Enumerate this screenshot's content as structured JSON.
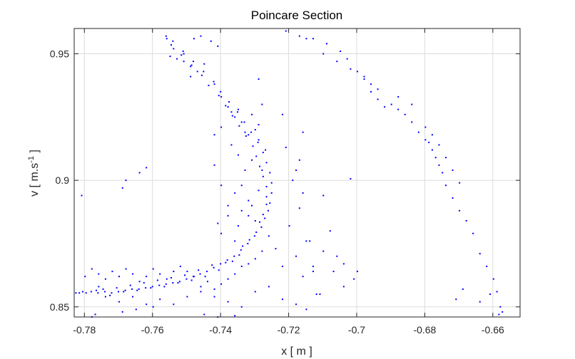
{
  "chart_data": {
    "type": "scatter",
    "title": "Poincare Section",
    "xlabel": "x  [ m ]",
    "ylabel": {
      "prefix": "v  [ m.s",
      "superscript": "-1",
      "suffix": " ]"
    },
    "xlim": [
      -0.783,
      -0.652
    ],
    "ylim": [
      0.846,
      0.96
    ],
    "xticks": [
      -0.78,
      -0.76,
      -0.74,
      -0.72,
      -0.7,
      -0.68,
      -0.66
    ],
    "xticklabels": [
      "-0.78",
      "-0.76",
      "-0.74",
      "-0.72",
      "-0.7",
      "-0.68",
      "-0.66"
    ],
    "yticks": [
      0.85,
      0.9,
      0.95
    ],
    "yticklabels": [
      "0.85",
      "0.9",
      "0.95"
    ],
    "grid": true,
    "marker_color": "#0000ff",
    "series": [
      {
        "points": [
          [
            -0.7825,
            0.8555
          ],
          [
            -0.7815,
            0.8555
          ],
          [
            -0.7805,
            0.856
          ],
          [
            -0.7795,
            0.8555
          ],
          [
            -0.778,
            0.856
          ],
          [
            -0.776,
            0.8555
          ],
          [
            -0.774,
            0.856
          ],
          [
            -0.772,
            0.8555
          ],
          [
            -0.77,
            0.856
          ],
          [
            -0.768,
            0.8565
          ],
          [
            -0.766,
            0.857
          ],
          [
            -0.764,
            0.857
          ],
          [
            -0.762,
            0.8575
          ],
          [
            -0.76,
            0.858
          ],
          [
            -0.758,
            0.8585
          ],
          [
            -0.756,
            0.859
          ],
          [
            -0.754,
            0.8595
          ],
          [
            -0.752,
            0.86
          ],
          [
            -0.75,
            0.861
          ],
          [
            -0.748,
            0.862
          ],
          [
            -0.746,
            0.863
          ],
          [
            -0.744,
            0.864
          ],
          [
            -0.742,
            0.8655
          ],
          [
            -0.74,
            0.867
          ],
          [
            -0.738,
            0.8685
          ],
          [
            -0.736,
            0.87
          ],
          [
            -0.734,
            0.8725
          ],
          [
            -0.732,
            0.875
          ],
          [
            -0.73,
            0.878
          ],
          [
            -0.728,
            0.8815
          ],
          [
            -0.727,
            0.885
          ],
          [
            -0.726,
            0.888
          ],
          [
            -0.7255,
            0.891
          ],
          [
            -0.725,
            0.895
          ],
          [
            -0.725,
            0.899
          ],
          [
            -0.7255,
            0.903
          ],
          [
            -0.7265,
            0.907
          ],
          [
            -0.7275,
            0.911
          ],
          [
            -0.729,
            0.915
          ],
          [
            -0.731,
            0.919
          ],
          [
            -0.733,
            0.923
          ],
          [
            -0.735,
            0.927
          ],
          [
            -0.7375,
            0.931
          ],
          [
            -0.74,
            0.935
          ],
          [
            -0.742,
            0.939
          ],
          [
            -0.745,
            0.943
          ],
          [
            -0.748,
            0.947
          ],
          [
            -0.751,
            0.951
          ],
          [
            -0.754,
            0.955
          ],
          [
            -0.756,
            0.957
          ],
          [
            -0.7765,
            0.8565
          ],
          [
            -0.7745,
            0.857
          ],
          [
            -0.7725,
            0.8545
          ],
          [
            -0.7705,
            0.8575
          ],
          [
            -0.7685,
            0.856
          ],
          [
            -0.7665,
            0.8585
          ],
          [
            -0.7645,
            0.8565
          ],
          [
            -0.7625,
            0.8595
          ],
          [
            -0.7605,
            0.8575
          ],
          [
            -0.7585,
            0.8605
          ],
          [
            -0.7565,
            0.858
          ],
          [
            -0.7545,
            0.8615
          ],
          [
            -0.7525,
            0.8595
          ],
          [
            -0.7505,
            0.8625
          ],
          [
            -0.7485,
            0.8605
          ],
          [
            -0.7465,
            0.8645
          ],
          [
            -0.7445,
            0.862
          ],
          [
            -0.7425,
            0.8665
          ],
          [
            -0.7405,
            0.8645
          ],
          [
            -0.7385,
            0.8675
          ],
          [
            -0.7365,
            0.868
          ],
          [
            -0.7345,
            0.8705
          ],
          [
            -0.7335,
            0.874
          ],
          [
            -0.7315,
            0.8765
          ],
          [
            -0.7295,
            0.8795
          ],
          [
            -0.7285,
            0.8835
          ],
          [
            -0.7275,
            0.8865
          ],
          [
            -0.7265,
            0.8905
          ],
          [
            -0.7265,
            0.8935
          ],
          [
            -0.7265,
            0.8975
          ],
          [
            -0.7275,
            0.9015
          ],
          [
            -0.7285,
            0.9055
          ],
          [
            -0.7295,
            0.9095
          ],
          [
            -0.7305,
            0.9135
          ],
          [
            -0.7325,
            0.9175
          ],
          [
            -0.7345,
            0.9215
          ],
          [
            -0.7365,
            0.9255
          ],
          [
            -0.7385,
            0.9295
          ],
          [
            -0.7405,
            0.9335
          ],
          [
            -0.7435,
            0.9375
          ],
          [
            -0.7455,
            0.9415
          ],
          [
            -0.7485,
            0.9455
          ],
          [
            -0.7515,
            0.9495
          ],
          [
            -0.7545,
            0.9535
          ],
          [
            -0.7338,
            0.888
          ],
          [
            -0.7318,
            0.886
          ],
          [
            -0.7308,
            0.89
          ],
          [
            -0.7298,
            0.884
          ],
          [
            -0.7288,
            0.896
          ],
          [
            -0.7318,
            0.892
          ],
          [
            -0.7338,
            0.898
          ],
          [
            -0.7348,
            0.882
          ],
          [
            -0.7358,
            0.895
          ],
          [
            -0.7328,
            0.904
          ],
          [
            -0.7308,
            0.908
          ],
          [
            -0.7348,
            0.91
          ],
          [
            -0.7368,
            0.914
          ],
          [
            -0.7318,
            0.918
          ],
          [
            -0.7288,
            0.916
          ],
          [
            -0.7378,
            0.886
          ],
          [
            -0.7398,
            0.879
          ],
          [
            -0.7358,
            0.876
          ],
          [
            -0.7408,
            0.883
          ],
          [
            -0.7378,
            0.89
          ],
          [
            -0.7398,
            0.898
          ],
          [
            -0.7418,
            0.906
          ],
          [
            -0.7338,
            0.923
          ],
          [
            -0.7368,
            0.927
          ],
          [
            -0.7398,
            0.921
          ],
          [
            -0.7418,
            0.918
          ],
          [
            -0.7308,
            0.926
          ],
          [
            -0.7288,
            0.922
          ],
          [
            -0.7268,
            0.912
          ],
          [
            -0.7278,
            0.904
          ],
          [
            -0.7258,
            0.878
          ],
          [
            -0.7278,
            0.872
          ],
          [
            -0.7298,
            0.869
          ],
          [
            -0.7318,
            0.867
          ],
          [
            -0.7338,
            0.866
          ],
          [
            -0.7358,
            0.863
          ],
          [
            -0.7378,
            0.861
          ],
          [
            -0.7398,
            0.859
          ],
          [
            -0.7418,
            0.857
          ],
          [
            -0.7438,
            0.86
          ],
          [
            -0.7458,
            0.858
          ],
          [
            -0.7478,
            0.862
          ],
          [
            -0.7498,
            0.864
          ],
          [
            -0.7518,
            0.866
          ],
          [
            -0.7538,
            0.864
          ],
          [
            -0.7558,
            0.861
          ],
          [
            -0.7578,
            0.863
          ],
          [
            -0.7598,
            0.865
          ],
          [
            -0.7618,
            0.862
          ],
          [
            -0.7638,
            0.86
          ],
          [
            -0.7658,
            0.863
          ],
          [
            -0.7678,
            0.865
          ],
          [
            -0.7698,
            0.862
          ],
          [
            -0.7718,
            0.864
          ],
          [
            -0.7738,
            0.861
          ],
          [
            -0.7758,
            0.863
          ],
          [
            -0.7778,
            0.865
          ],
          [
            -0.7798,
            0.862
          ],
          [
            -0.7758,
            0.858
          ],
          [
            -0.7738,
            0.854
          ],
          [
            -0.7698,
            0.852
          ],
          [
            -0.7658,
            0.854
          ],
          [
            -0.7618,
            0.851
          ],
          [
            -0.7578,
            0.853
          ],
          [
            -0.7538,
            0.851
          ],
          [
            -0.7498,
            0.854
          ],
          [
            -0.7458,
            0.856
          ],
          [
            -0.7418,
            0.854
          ],
          [
            -0.7378,
            0.852
          ],
          [
            -0.7338,
            0.85
          ],
          [
            -0.7298,
            0.856
          ],
          [
            -0.7258,
            0.858
          ],
          [
            -0.7218,
            0.853
          ],
          [
            -0.7178,
            0.851
          ],
          [
            -0.7148,
            0.849
          ],
          [
            -0.7118,
            0.855
          ],
          [
            -0.7158,
            0.862
          ],
          [
            -0.7128,
            0.866
          ],
          [
            -0.7178,
            0.87
          ],
          [
            -0.7138,
            0.876
          ],
          [
            -0.7098,
            0.872
          ],
          [
            -0.7068,
            0.864
          ],
          [
            -0.7038,
            0.858
          ],
          [
            -0.7808,
            0.894
          ],
          [
            -0.7688,
            0.897
          ],
          [
            -0.7678,
            0.9
          ],
          [
            -0.7638,
            0.903
          ],
          [
            -0.7618,
            0.905
          ],
          [
            -0.7768,
            0.847
          ],
          [
            -0.7778,
            0.846
          ],
          [
            -0.7688,
            0.848
          ],
          [
            -0.7648,
            0.849
          ],
          [
            -0.7598,
            0.85
          ],
          [
            -0.7448,
            0.847
          ],
          [
            -0.7408,
            0.846
          ],
          [
            -0.7358,
            0.8465
          ],
          [
            -0.7218,
            0.926
          ],
          [
            -0.7208,
            0.913
          ],
          [
            -0.7188,
            0.9
          ],
          [
            -0.7168,
            0.889
          ],
          [
            -0.7148,
            0.876
          ],
          [
            -0.7128,
            0.864
          ],
          [
            -0.7108,
            0.855
          ],
          [
            -0.7178,
            0.904
          ],
          [
            -0.7158,
            0.895
          ],
          [
            -0.7198,
            0.882
          ],
          [
            -0.7238,
            0.873
          ],
          [
            -0.7218,
            0.866
          ],
          [
            -0.7158,
            0.919
          ],
          [
            -0.7168,
            0.908
          ],
          [
            -0.7098,
            0.894
          ],
          [
            -0.7078,
            0.88
          ],
          [
            -0.7058,
            0.87
          ],
          [
            -0.7018,
            0.9006
          ],
          [
            -0.7008,
            0.861
          ],
          [
            -0.6998,
            0.864
          ],
          [
            -0.7038,
            0.867
          ],
          [
            -0.7208,
            0.959
          ],
          [
            -0.7168,
            0.957
          ],
          [
            -0.7128,
            0.956
          ],
          [
            -0.7088,
            0.954
          ],
          [
            -0.7048,
            0.951
          ],
          [
            -0.7028,
            0.948
          ],
          [
            -0.6998,
            0.943
          ],
          [
            -0.6978,
            0.94
          ],
          [
            -0.6958,
            0.935
          ],
          [
            -0.6938,
            0.932
          ],
          [
            -0.6918,
            0.929
          ],
          [
            -0.6898,
            0.93
          ],
          [
            -0.6878,
            0.928
          ],
          [
            -0.6858,
            0.926
          ],
          [
            -0.6838,
            0.923
          ],
          [
            -0.6818,
            0.919
          ],
          [
            -0.6798,
            0.916
          ],
          [
            -0.6788,
            0.915
          ],
          [
            -0.6778,
            0.912
          ],
          [
            -0.6768,
            0.909
          ],
          [
            -0.6758,
            0.906
          ],
          [
            -0.6748,
            0.903
          ],
          [
            -0.6738,
            0.898
          ],
          [
            -0.6718,
            0.893
          ],
          [
            -0.6698,
            0.888
          ],
          [
            -0.6678,
            0.884
          ],
          [
            -0.6658,
            0.879
          ],
          [
            -0.6638,
            0.871
          ],
          [
            -0.6618,
            0.866
          ],
          [
            -0.6598,
            0.861
          ],
          [
            -0.6588,
            0.856
          ],
          [
            -0.6578,
            0.85
          ],
          [
            -0.6582,
            0.847
          ],
          [
            -0.6572,
            0.848
          ],
          [
            -0.6608,
            0.855
          ],
          [
            -0.6638,
            0.852
          ],
          [
            -0.6688,
            0.857
          ],
          [
            -0.6708,
            0.853
          ],
          [
            -0.7148,
            0.956
          ],
          [
            -0.7098,
            0.95
          ],
          [
            -0.7058,
            0.947
          ],
          [
            -0.7018,
            0.944
          ],
          [
            -0.6978,
            0.941
          ],
          [
            -0.6958,
            0.938
          ],
          [
            -0.6938,
            0.936
          ],
          [
            -0.6878,
            0.933
          ],
          [
            -0.6838,
            0.93
          ],
          [
            -0.6798,
            0.921
          ],
          [
            -0.6778,
            0.918
          ],
          [
            -0.6758,
            0.914
          ],
          [
            -0.6738,
            0.909
          ],
          [
            -0.6718,
            0.904
          ],
          [
            -0.6698,
            0.899
          ],
          [
            -0.7478,
            0.956
          ],
          [
            -0.7458,
            0.957
          ],
          [
            -0.7428,
            0.955
          ],
          [
            -0.7408,
            0.953
          ],
          [
            -0.7448,
            0.946
          ],
          [
            -0.7468,
            0.943
          ],
          [
            -0.7488,
            0.945
          ],
          [
            -0.7508,
            0.947
          ],
          [
            -0.7528,
            0.948
          ],
          [
            -0.7548,
            0.949
          ],
          [
            -0.7558,
            0.956
          ],
          [
            -0.7538,
            0.952
          ],
          [
            -0.7508,
            0.95
          ],
          [
            -0.7488,
            0.941
          ],
          [
            -0.7418,
            0.938
          ],
          [
            -0.7398,
            0.933
          ],
          [
            -0.7378,
            0.929
          ],
          [
            -0.7358,
            0.925
          ],
          [
            -0.7348,
            0.928
          ],
          [
            -0.7328,
            0.919
          ],
          [
            -0.7298,
            0.92
          ],
          [
            -0.7278,
            0.93
          ],
          [
            -0.7288,
            0.94
          ]
        ]
      }
    ]
  }
}
